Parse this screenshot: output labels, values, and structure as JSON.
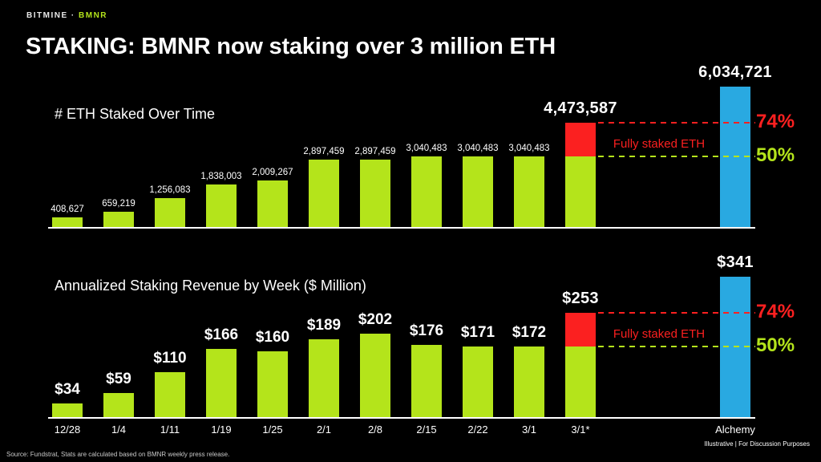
{
  "brand": {
    "company": "BITMINE",
    "separator": "·",
    "ticker": "BMNR"
  },
  "title": "STAKING: BMNR now staking over 3 million ETH",
  "footer": {
    "source": "Source: Fundstrat, Stats are calculated based on BMNR weekly press release.",
    "disclaimer": "Illustrative  |  For Discussion Purposes"
  },
  "colors": {
    "background": "#000000",
    "bar_green": "#b4e41b",
    "bar_blue": "#29a9e1",
    "red": "#fb2020",
    "white": "#ffffff"
  },
  "chart_data": [
    {
      "type": "bar",
      "title": "# ETH Staked Over Time",
      "categories": [
        "12/28",
        "1/4",
        "1/11",
        "1/19",
        "1/25",
        "2/1",
        "2/8",
        "2/15",
        "2/22",
        "3/1",
        "3/1*",
        "Alchemy"
      ],
      "values": [
        408627,
        659219,
        1256083,
        1838003,
        2009267,
        2897459,
        2897459,
        3040483,
        3040483,
        3040483,
        4473587,
        6034721
      ],
      "value_labels": [
        "408,627",
        "659,219",
        "1,256,083",
        "1,838,003",
        "2,009,267",
        "2,897,459",
        "2,897,459",
        "3,040,483",
        "3,040,483",
        "3,040,483",
        "4,473,587",
        "6,034,721"
      ],
      "ylim": [
        0,
        6034721
      ],
      "stacked_bar": {
        "index": 10,
        "base_value": 3040483,
        "top_color": "red"
      },
      "final_bar": {
        "index": 11,
        "color": "blue",
        "label": "Alchemy"
      },
      "reference_lines": [
        {
          "label": "74%",
          "value": 4473587,
          "color": "red"
        },
        {
          "label": "50%",
          "value": 3040483,
          "color": "green"
        }
      ],
      "annotation": "Fully staked ETH",
      "legend_position": "none",
      "grid": false
    },
    {
      "type": "bar",
      "title": "Annualized Staking Revenue by Week ($ Million)",
      "categories": [
        "12/28",
        "1/4",
        "1/11",
        "1/19",
        "1/25",
        "2/1",
        "2/8",
        "2/15",
        "2/22",
        "3/1",
        "3/1*",
        "Alchemy"
      ],
      "values": [
        34,
        59,
        110,
        166,
        160,
        189,
        202,
        176,
        171,
        172,
        253,
        341
      ],
      "value_labels": [
        "$34",
        "$59",
        "$110",
        "$166",
        "$160",
        "$189",
        "$202",
        "$176",
        "$171",
        "$172",
        "$253",
        "$341"
      ],
      "ylim": [
        0,
        341
      ],
      "stacked_bar": {
        "index": 10,
        "base_value": 172,
        "top_color": "red"
      },
      "final_bar": {
        "index": 11,
        "color": "blue",
        "label": "Alchemy"
      },
      "reference_lines": [
        {
          "label": "74%",
          "value": 253,
          "color": "red"
        },
        {
          "label": "50%",
          "value": 172,
          "color": "green"
        }
      ],
      "annotation": "Fully staked ETH",
      "legend_position": "none",
      "grid": false
    }
  ]
}
